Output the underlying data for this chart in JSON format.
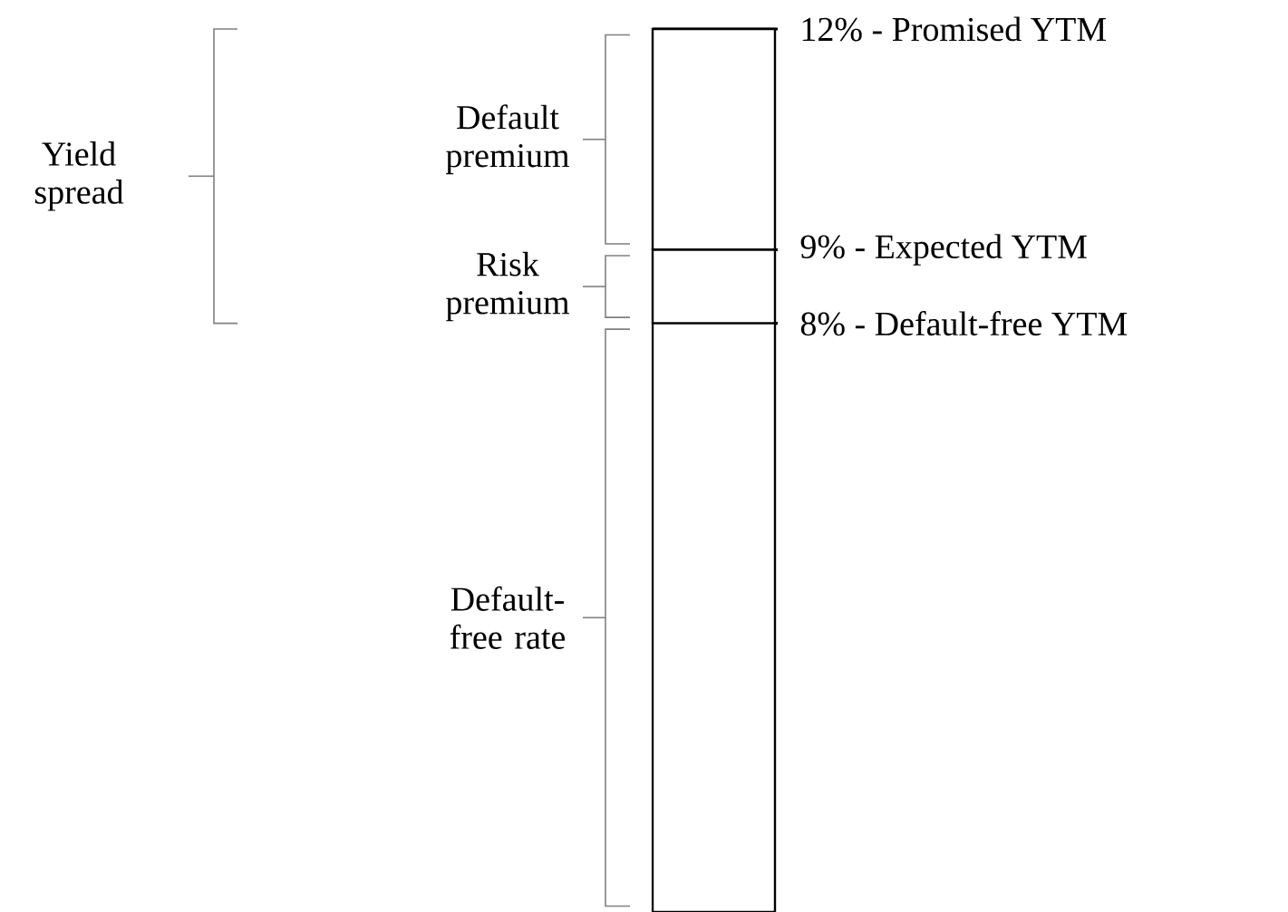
{
  "chart_data": {
    "type": "bar",
    "stacked": true,
    "categories": [
      null
    ],
    "series": [
      {
        "name": "Default-free rate",
        "color": "#ffffff",
        "values": [
          8
        ]
      },
      {
        "name": "Risk premium",
        "color": "#ffffff",
        "values": [
          1
        ]
      },
      {
        "name": "Default premium",
        "color": "#ffffff",
        "values": [
          3
        ]
      }
    ],
    "ylim": [
      0,
      12
    ],
    "yticks": [
      {
        "value": 12,
        "label": "12% - Promised YTM"
      },
      {
        "value": 9,
        "label": "9% - Expected YTM"
      },
      {
        "value": 8,
        "label": "8% - Default-free YTM"
      }
    ],
    "annotations": [
      "Yield spread"
    ]
  }
}
